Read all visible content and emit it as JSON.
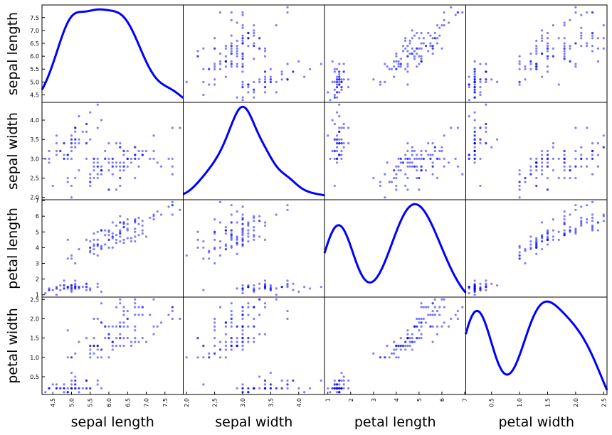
{
  "chart_data": {
    "type": "scatter_matrix",
    "diagonal": "kde",
    "color": "#0000ff",
    "alpha": 0.5,
    "variables": [
      {
        "name": "sepal length",
        "lim": [
          4.21,
          7.99
        ],
        "ticks": [
          4.5,
          {
            "value": 5,
            "label": "5.0"
          },
          5.5,
          {
            "value": 6,
            "label": "6.0"
          },
          6.5,
          {
            "value": 7,
            "label": "7.0"
          },
          7.5
        ],
        "values": [
          5.1,
          4.9,
          4.7,
          4.6,
          5.0,
          5.4,
          4.6,
          5.0,
          4.4,
          4.9,
          5.4,
          4.8,
          4.8,
          4.3,
          5.8,
          5.7,
          5.4,
          5.1,
          5.7,
          5.1,
          5.4,
          5.1,
          4.6,
          5.1,
          4.8,
          5.0,
          5.0,
          5.2,
          5.2,
          4.7,
          4.8,
          5.4,
          5.2,
          5.5,
          4.9,
          5.0,
          5.5,
          4.9,
          4.4,
          5.1,
          5.0,
          4.5,
          4.4,
          5.0,
          5.1,
          4.8,
          5.1,
          4.6,
          5.3,
          5.0,
          7.0,
          6.4,
          6.9,
          5.5,
          6.5,
          5.7,
          6.3,
          4.9,
          6.6,
          5.2,
          5.0,
          5.9,
          6.0,
          6.1,
          5.6,
          6.7,
          5.6,
          5.8,
          6.2,
          5.6,
          5.9,
          6.1,
          6.3,
          6.1,
          6.4,
          6.6,
          6.8,
          6.7,
          6.0,
          5.7,
          5.5,
          5.5,
          5.8,
          6.0,
          5.4,
          6.0,
          6.7,
          6.3,
          5.6,
          5.5,
          5.5,
          6.1,
          5.8,
          5.0,
          5.6,
          5.7,
          5.7,
          6.2,
          5.1,
          5.7,
          6.3,
          5.8,
          7.1,
          6.3,
          6.5,
          7.6,
          4.9,
          7.3,
          6.7,
          7.2,
          6.5,
          6.4,
          6.8,
          5.7,
          5.8,
          6.4,
          6.5,
          7.7,
          7.7,
          6.0,
          6.9,
          5.6,
          7.7,
          6.3,
          6.7,
          7.2,
          6.2,
          6.1,
          6.4,
          7.2,
          7.4,
          7.9,
          6.4,
          6.3,
          6.1,
          7.7,
          6.3,
          6.4,
          6.0,
          6.9,
          6.7,
          6.9,
          5.8,
          6.8,
          6.7,
          6.7,
          6.3,
          6.5,
          6.2,
          5.9
        ]
      },
      {
        "name": "sepal width",
        "lim": [
          1.94,
          4.46
        ],
        "ticks": [
          {
            "value": 2,
            "label": "2.0"
          },
          2.5,
          {
            "value": 3,
            "label": "3.0"
          },
          3.5,
          {
            "value": 4,
            "label": "4.0"
          }
        ],
        "values": [
          3.5,
          3.0,
          3.2,
          3.1,
          3.6,
          3.9,
          3.4,
          3.4,
          2.9,
          3.1,
          3.7,
          3.4,
          3.0,
          3.0,
          4.0,
          4.4,
          3.9,
          3.5,
          3.8,
          3.8,
          3.4,
          3.7,
          3.6,
          3.3,
          3.4,
          3.0,
          3.4,
          3.5,
          3.4,
          3.2,
          3.1,
          3.4,
          4.1,
          4.2,
          3.1,
          3.2,
          3.5,
          3.1,
          3.0,
          3.4,
          3.5,
          2.3,
          3.2,
          3.5,
          3.8,
          3.0,
          3.8,
          3.2,
          3.7,
          3.3,
          3.2,
          3.2,
          3.1,
          2.3,
          2.8,
          2.8,
          3.3,
          2.4,
          2.9,
          2.7,
          2.0,
          3.0,
          2.2,
          2.9,
          2.9,
          3.1,
          3.0,
          2.7,
          2.2,
          2.5,
          3.2,
          2.8,
          2.5,
          2.8,
          2.9,
          3.0,
          2.8,
          3.0,
          2.9,
          2.6,
          2.4,
          2.4,
          2.7,
          2.7,
          3.0,
          3.4,
          3.1,
          2.3,
          3.0,
          2.5,
          2.6,
          3.0,
          2.6,
          2.3,
          2.7,
          3.0,
          2.9,
          2.9,
          2.5,
          2.8,
          3.3,
          2.7,
          3.0,
          2.9,
          3.0,
          3.0,
          2.5,
          2.9,
          2.5,
          3.6,
          3.2,
          2.7,
          3.0,
          2.5,
          2.8,
          3.2,
          3.0,
          3.8,
          2.6,
          2.2,
          3.2,
          2.8,
          2.8,
          2.7,
          3.3,
          3.2,
          2.8,
          3.0,
          2.8,
          3.0,
          2.8,
          3.8,
          2.8,
          2.8,
          2.6,
          3.0,
          3.4,
          3.1,
          3.0,
          3.1,
          3.1,
          3.1,
          2.7,
          3.2,
          3.3,
          3.0,
          2.5,
          3.0,
          3.4,
          3.0
        ]
      },
      {
        "name": "petal length",
        "lim": [
          0.8525,
          7.0475
        ],
        "ticks": [
          1,
          2,
          3,
          4,
          5,
          6,
          7
        ],
        "values": [
          1.4,
          1.4,
          1.3,
          1.5,
          1.4,
          1.7,
          1.4,
          1.5,
          1.4,
          1.5,
          1.5,
          1.6,
          1.4,
          1.1,
          1.2,
          1.5,
          1.3,
          1.4,
          1.7,
          1.5,
          1.7,
          1.5,
          1.0,
          1.7,
          1.9,
          1.6,
          1.6,
          1.5,
          1.4,
          1.6,
          1.6,
          1.5,
          1.5,
          1.4,
          1.5,
          1.2,
          1.3,
          1.5,
          1.3,
          1.5,
          1.3,
          1.3,
          1.3,
          1.6,
          1.9,
          1.4,
          1.6,
          1.4,
          1.5,
          1.4,
          4.7,
          4.5,
          4.9,
          4.0,
          4.6,
          4.5,
          4.7,
          3.3,
          4.6,
          3.9,
          3.5,
          4.2,
          4.0,
          4.7,
          3.6,
          4.4,
          4.5,
          4.1,
          4.5,
          3.9,
          4.8,
          4.0,
          4.9,
          4.7,
          4.3,
          4.4,
          4.8,
          5.0,
          4.5,
          3.5,
          3.8,
          3.7,
          3.9,
          5.1,
          4.5,
          4.5,
          4.7,
          4.4,
          4.1,
          4.0,
          4.4,
          4.6,
          4.0,
          3.3,
          4.2,
          4.2,
          4.2,
          4.3,
          3.0,
          4.1,
          6.0,
          5.1,
          5.9,
          5.6,
          5.8,
          6.6,
          4.5,
          6.3,
          5.8,
          6.1,
          5.1,
          5.3,
          5.5,
          5.0,
          5.1,
          5.3,
          5.5,
          6.7,
          6.9,
          5.0,
          5.7,
          4.9,
          6.7,
          4.9,
          5.7,
          6.0,
          4.8,
          4.9,
          5.6,
          5.8,
          6.1,
          6.4,
          5.6,
          5.1,
          5.6,
          6.1,
          5.6,
          5.5,
          4.8,
          5.4,
          5.6,
          5.1,
          5.1,
          5.9,
          5.7,
          5.2,
          5.0,
          5.2,
          5.4,
          5.1
        ]
      },
      {
        "name": "petal width",
        "lim": [
          0.04,
          2.56
        ],
        "ticks": [
          0.5,
          {
            "value": 1,
            "label": "1.0"
          },
          1.5,
          {
            "value": 2,
            "label": "2.0"
          },
          2.5
        ],
        "values": [
          0.2,
          0.2,
          0.2,
          0.2,
          0.2,
          0.4,
          0.3,
          0.2,
          0.2,
          0.1,
          0.2,
          0.2,
          0.1,
          0.1,
          0.2,
          0.4,
          0.4,
          0.3,
          0.3,
          0.3,
          0.2,
          0.4,
          0.2,
          0.5,
          0.2,
          0.2,
          0.4,
          0.2,
          0.2,
          0.2,
          0.2,
          0.4,
          0.1,
          0.2,
          0.1,
          0.2,
          0.2,
          0.1,
          0.2,
          0.2,
          0.3,
          0.3,
          0.2,
          0.6,
          0.4,
          0.3,
          0.2,
          0.2,
          0.2,
          0.2,
          1.4,
          1.5,
          1.5,
          1.3,
          1.5,
          1.3,
          1.6,
          1.0,
          1.3,
          1.4,
          1.0,
          1.5,
          1.0,
          1.4,
          1.3,
          1.4,
          1.5,
          1.0,
          1.5,
          1.1,
          1.8,
          1.3,
          1.5,
          1.2,
          1.3,
          1.4,
          1.4,
          1.7,
          1.5,
          1.0,
          1.1,
          1.0,
          1.2,
          1.6,
          1.5,
          1.6,
          1.5,
          1.3,
          1.3,
          1.3,
          1.2,
          1.4,
          1.2,
          1.0,
          1.3,
          1.2,
          1.3,
          1.3,
          1.1,
          1.3,
          2.5,
          1.9,
          2.1,
          1.8,
          2.2,
          2.1,
          1.7,
          1.8,
          1.8,
          2.5,
          2.0,
          1.9,
          2.1,
          2.0,
          2.4,
          2.3,
          1.8,
          2.2,
          2.3,
          1.5,
          2.3,
          2.0,
          2.0,
          1.8,
          2.1,
          1.8,
          1.8,
          1.8,
          2.1,
          1.6,
          1.9,
          2.0,
          2.2,
          1.5,
          1.4,
          2.3,
          2.4,
          1.8,
          1.8,
          2.1,
          2.4,
          2.3,
          1.9,
          2.3,
          2.5,
          2.3,
          1.9,
          2.0,
          2.3,
          1.8
        ]
      }
    ]
  }
}
